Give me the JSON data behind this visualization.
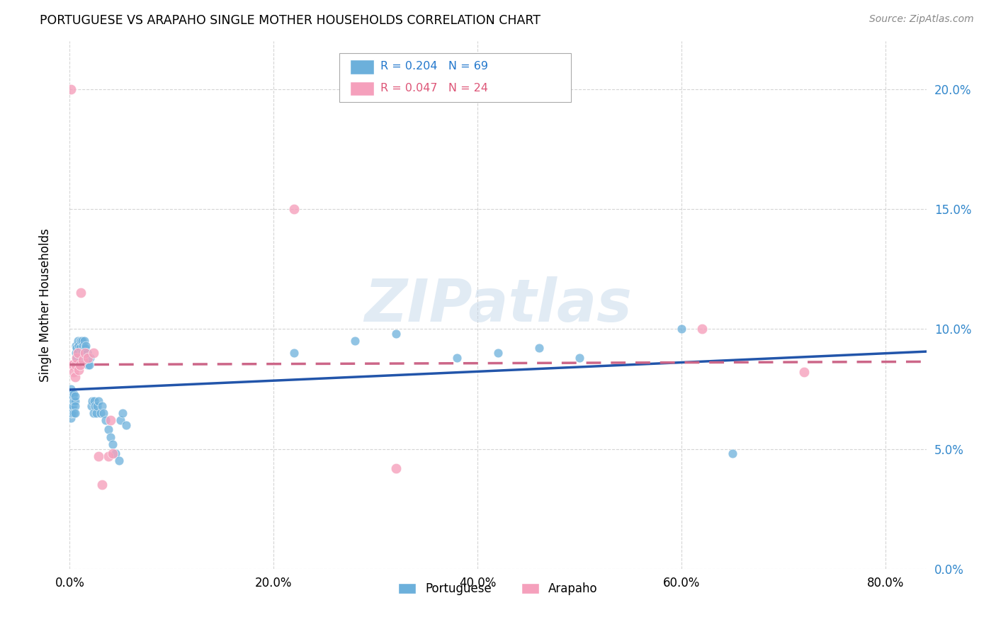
{
  "title": "PORTUGUESE VS ARAPAHO SINGLE MOTHER HOUSEHOLDS CORRELATION CHART",
  "source": "Source: ZipAtlas.com",
  "ylabel": "Single Mother Households",
  "x_tick_labels": [
    "0.0%",
    "20.0%",
    "40.0%",
    "60.0%",
    "80.0%"
  ],
  "y_tick_labels": [
    "0.0%",
    "5.0%",
    "10.0%",
    "15.0%",
    "20.0%"
  ],
  "x_tick_vals": [
    0.0,
    0.2,
    0.4,
    0.6,
    0.8
  ],
  "y_tick_vals": [
    0.0,
    0.05,
    0.1,
    0.15,
    0.2
  ],
  "xlim": [
    0.0,
    0.84
  ],
  "ylim": [
    0.0,
    0.22
  ],
  "watermark": "ZIPatlas",
  "portuguese_color": "#6cb0db",
  "arapaho_color": "#f5a0bc",
  "portuguese_line_color": "#2255aa",
  "arapaho_line_color": "#cc6688",
  "right_axis_color": "#3388cc",
  "portuguese_x": [
    0.001,
    0.001,
    0.001,
    0.001,
    0.001,
    0.001,
    0.002,
    0.002,
    0.002,
    0.002,
    0.003,
    0.003,
    0.003,
    0.004,
    0.004,
    0.004,
    0.005,
    0.005,
    0.005,
    0.005,
    0.006,
    0.006,
    0.007,
    0.007,
    0.008,
    0.008,
    0.009,
    0.01,
    0.01,
    0.011,
    0.012,
    0.012,
    0.013,
    0.014,
    0.015,
    0.016,
    0.017,
    0.018,
    0.019,
    0.02,
    0.021,
    0.022,
    0.023,
    0.024,
    0.025,
    0.026,
    0.027,
    0.028,
    0.03,
    0.032,
    0.033,
    0.035,
    0.038,
    0.04,
    0.042,
    0.045,
    0.048,
    0.05,
    0.052,
    0.055,
    0.22,
    0.28,
    0.32,
    0.38,
    0.42,
    0.46,
    0.5,
    0.6,
    0.65
  ],
  "portuguese_y": [
    0.068,
    0.07,
    0.073,
    0.075,
    0.063,
    0.065,
    0.07,
    0.073,
    0.068,
    0.065,
    0.07,
    0.072,
    0.068,
    0.07,
    0.073,
    0.065,
    0.07,
    0.068,
    0.065,
    0.072,
    0.09,
    0.093,
    0.088,
    0.092,
    0.095,
    0.09,
    0.093,
    0.088,
    0.092,
    0.095,
    0.09,
    0.095,
    0.093,
    0.095,
    0.092,
    0.093,
    0.09,
    0.085,
    0.085,
    0.088,
    0.068,
    0.07,
    0.065,
    0.07,
    0.068,
    0.065,
    0.068,
    0.07,
    0.065,
    0.068,
    0.065,
    0.062,
    0.058,
    0.055,
    0.052,
    0.048,
    0.045,
    0.062,
    0.065,
    0.06,
    0.09,
    0.095,
    0.098,
    0.088,
    0.09,
    0.092,
    0.088,
    0.1,
    0.048
  ],
  "arapaho_x": [
    0.001,
    0.002,
    0.003,
    0.004,
    0.005,
    0.006,
    0.007,
    0.008,
    0.009,
    0.01,
    0.011,
    0.013,
    0.015,
    0.018,
    0.023,
    0.028,
    0.032,
    0.038,
    0.04,
    0.042,
    0.22,
    0.32,
    0.62,
    0.72
  ],
  "arapaho_y": [
    0.2,
    0.085,
    0.085,
    0.082,
    0.08,
    0.085,
    0.088,
    0.09,
    0.083,
    0.085,
    0.115,
    0.087,
    0.09,
    0.088,
    0.09,
    0.047,
    0.035,
    0.047,
    0.062,
    0.048,
    0.15,
    0.042,
    0.1,
    0.082
  ]
}
